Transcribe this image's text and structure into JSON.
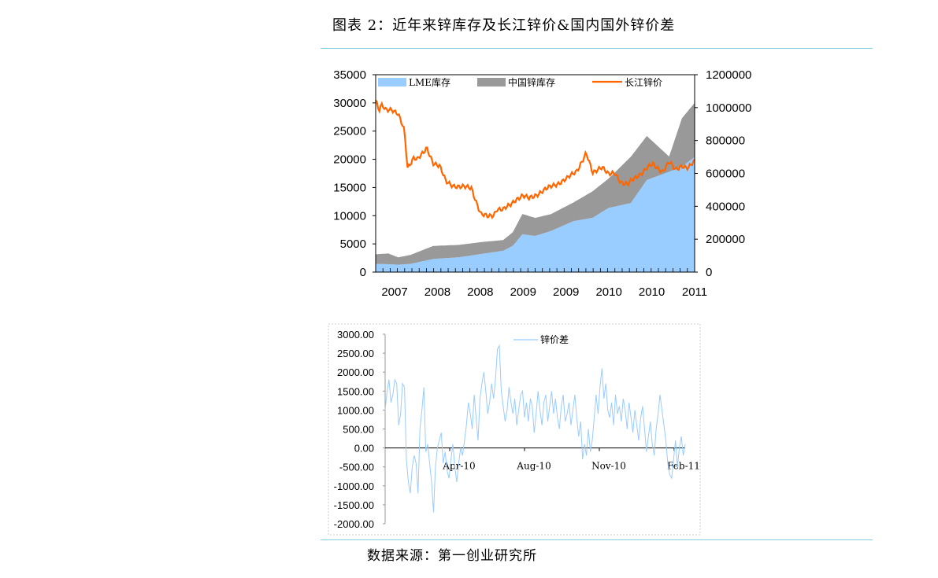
{
  "figure_title": "图表 2：近年来锌库存及长江锌价&国内国外锌价差",
  "source": "数据来源：第一创业研究所",
  "colors": {
    "lme": "#99ccff",
    "china": "#999999",
    "price": "#ff6600",
    "spread": "#99ccff",
    "rule": "#7fd0e0"
  },
  "chart_data": [
    {
      "type": "area",
      "x_labels": [
        "2007",
        "2008",
        "2008",
        "2009",
        "2009",
        "2010",
        "2010",
        "2011"
      ],
      "y_left": {
        "ticks": [
          "35000",
          "30000",
          "25000",
          "20000",
          "15000",
          "10000",
          "5000",
          "0"
        ],
        "range": [
          0,
          35000
        ]
      },
      "y_right": {
        "ticks": [
          "1200000",
          "1000000",
          "800000",
          "600000",
          "400000",
          "200000",
          "0"
        ],
        "range": [
          0,
          1200000
        ]
      },
      "legend": [
        "LME库存",
        "中国锌库存",
        "长江锌价"
      ],
      "legend_position": "top",
      "series": [
        {
          "name": "LME库存",
          "axis": "right",
          "kind": "area",
          "x": [
            0,
            0.04,
            0.07,
            0.11,
            0.18,
            0.26,
            0.33,
            0.4,
            0.43,
            0.46,
            0.5,
            0.55,
            0.62,
            0.68,
            0.73,
            0.8,
            0.85,
            0.92,
            0.96,
            1.0
          ],
          "values": [
            50000,
            48000,
            45000,
            50000,
            80000,
            90000,
            110000,
            130000,
            160000,
            230000,
            220000,
            250000,
            310000,
            330000,
            390000,
            420000,
            560000,
            610000,
            640000,
            700000
          ]
        },
        {
          "name": "中国锌库存",
          "axis": "left",
          "kind": "band",
          "x": [
            0,
            0.04,
            0.07,
            0.11,
            0.18,
            0.26,
            0.33,
            0.4,
            0.43,
            0.46,
            0.5,
            0.55,
            0.62,
            0.68,
            0.73,
            0.8,
            0.85,
            0.92,
            0.96,
            1.0
          ],
          "values": [
            1700,
            1900,
            1300,
            1600,
            2300,
            2200,
            2100,
            1900,
            2400,
            3600,
            3200,
            3000,
            3300,
            4700,
            5200,
            8200,
            7800,
            2700,
            8600,
            9600
          ]
        },
        {
          "name": "长江锌价",
          "axis": "left",
          "kind": "line",
          "x": [
            0,
            0.01,
            0.02,
            0.03,
            0.05,
            0.07,
            0.09,
            0.1,
            0.12,
            0.13,
            0.15,
            0.16,
            0.18,
            0.2,
            0.22,
            0.24,
            0.27,
            0.3,
            0.33,
            0.35,
            0.37,
            0.38,
            0.4,
            0.42,
            0.44,
            0.46,
            0.48,
            0.51,
            0.53,
            0.56,
            0.6,
            0.63,
            0.66,
            0.68,
            0.7,
            0.71,
            0.73,
            0.75,
            0.77,
            0.79,
            0.81,
            0.83,
            0.85,
            0.87,
            0.88,
            0.9,
            0.92,
            0.94,
            0.96,
            0.98,
            1.0
          ],
          "values": [
            30500,
            28500,
            29500,
            28800,
            29000,
            28000,
            25000,
            18500,
            20500,
            20000,
            21000,
            22000,
            19500,
            18800,
            16000,
            15500,
            15000,
            15000,
            10200,
            9800,
            10200,
            11300,
            11000,
            11800,
            13000,
            13500,
            13000,
            14000,
            14500,
            15500,
            16500,
            18000,
            21000,
            17500,
            18500,
            18800,
            17200,
            17500,
            16000,
            15500,
            16500,
            17500,
            18500,
            19000,
            18500,
            18000,
            19500,
            18000,
            19000,
            18500,
            19500
          ]
        }
      ]
    },
    {
      "type": "line",
      "x_labels": [
        "Apr-10",
        "Aug-10",
        "Nov-10",
        "Feb-11"
      ],
      "y_ticks": [
        "3000.00",
        "2500.00",
        "2000.00",
        "1500.00",
        "1000.00",
        "500.00",
        "0.00",
        "-500.00",
        "-1000.00",
        "-1500.00",
        "-2000.00"
      ],
      "ylim": [
        -2000,
        3000
      ],
      "legend": [
        "锌价差"
      ],
      "legend_position": "top",
      "series": [
        {
          "name": "锌价差",
          "values": [
            1000,
            1500,
            1800,
            1200,
            1400,
            1800,
            1700,
            600,
            900,
            1700,
            1600,
            -300,
            -900,
            -1200,
            -500,
            -200,
            -400,
            -1200,
            500,
            1000,
            1600,
            -100,
            100,
            -400,
            -900,
            -1700,
            -500,
            0,
            200,
            400,
            -400,
            -100,
            -600,
            -800,
            -300,
            100,
            -500,
            -900,
            -400,
            0,
            -200,
            200,
            600,
            1200,
            900,
            500,
            1400,
            800,
            200,
            1300,
            1700,
            2000,
            1500,
            900,
            1200,
            1700,
            1300,
            1800,
            2600,
            2700,
            1500,
            1100,
            700,
            1000,
            1600,
            1200,
            900,
            1300,
            600,
            1000,
            1400,
            1500,
            800,
            1200,
            700,
            1300,
            1100,
            400,
            900,
            1500,
            1000,
            600,
            1200,
            1400,
            700,
            1100,
            1500,
            900,
            1300,
            800,
            500,
            1100,
            1400,
            700,
            900,
            1200,
            600,
            1000,
            1400,
            800,
            300,
            700,
            -300,
            100,
            -200,
            500,
            -100,
            200,
            800,
            1400,
            900,
            1600,
            2100,
            1300,
            1700,
            1000,
            800,
            1200,
            600,
            1400,
            900,
            1100,
            700,
            1300,
            1000,
            500,
            1200,
            800,
            400,
            1000,
            600,
            200,
            800,
            1100,
            500,
            -100,
            300,
            700,
            100,
            -200,
            500,
            900,
            1400,
            1000,
            600,
            200,
            -400,
            -700,
            -800,
            -300,
            200,
            -500,
            0,
            300,
            -200,
            100
          ]
        }
      ]
    }
  ]
}
